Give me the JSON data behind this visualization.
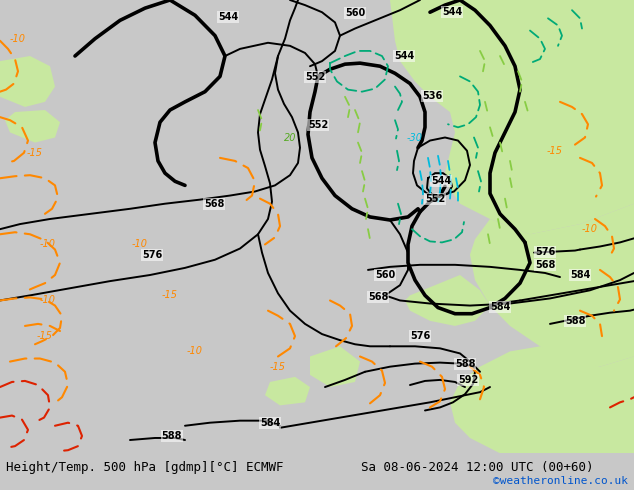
{
  "title_left": "Height/Temp. 500 hPa [gdmp][°C] ECMWF",
  "title_right": "Sa 08-06-2024 12:00 UTC (00+60)",
  "credit": "©weatheronline.co.uk",
  "title_color": "#000000",
  "credit_color": "#0055cc",
  "title_fontsize": 9,
  "credit_fontsize": 8,
  "fig_width": 6.34,
  "fig_height": 4.9,
  "dpi": 100,
  "bg_gray": "#c8c8c8",
  "green": "#c8e8a0",
  "dark_gray": "#a8a8a8",
  "black": "#000000",
  "orange": "#ff8800",
  "cyan": "#00bbdd",
  "teal": "#00aa77",
  "lime": "#88cc44",
  "red": "#dd2200"
}
